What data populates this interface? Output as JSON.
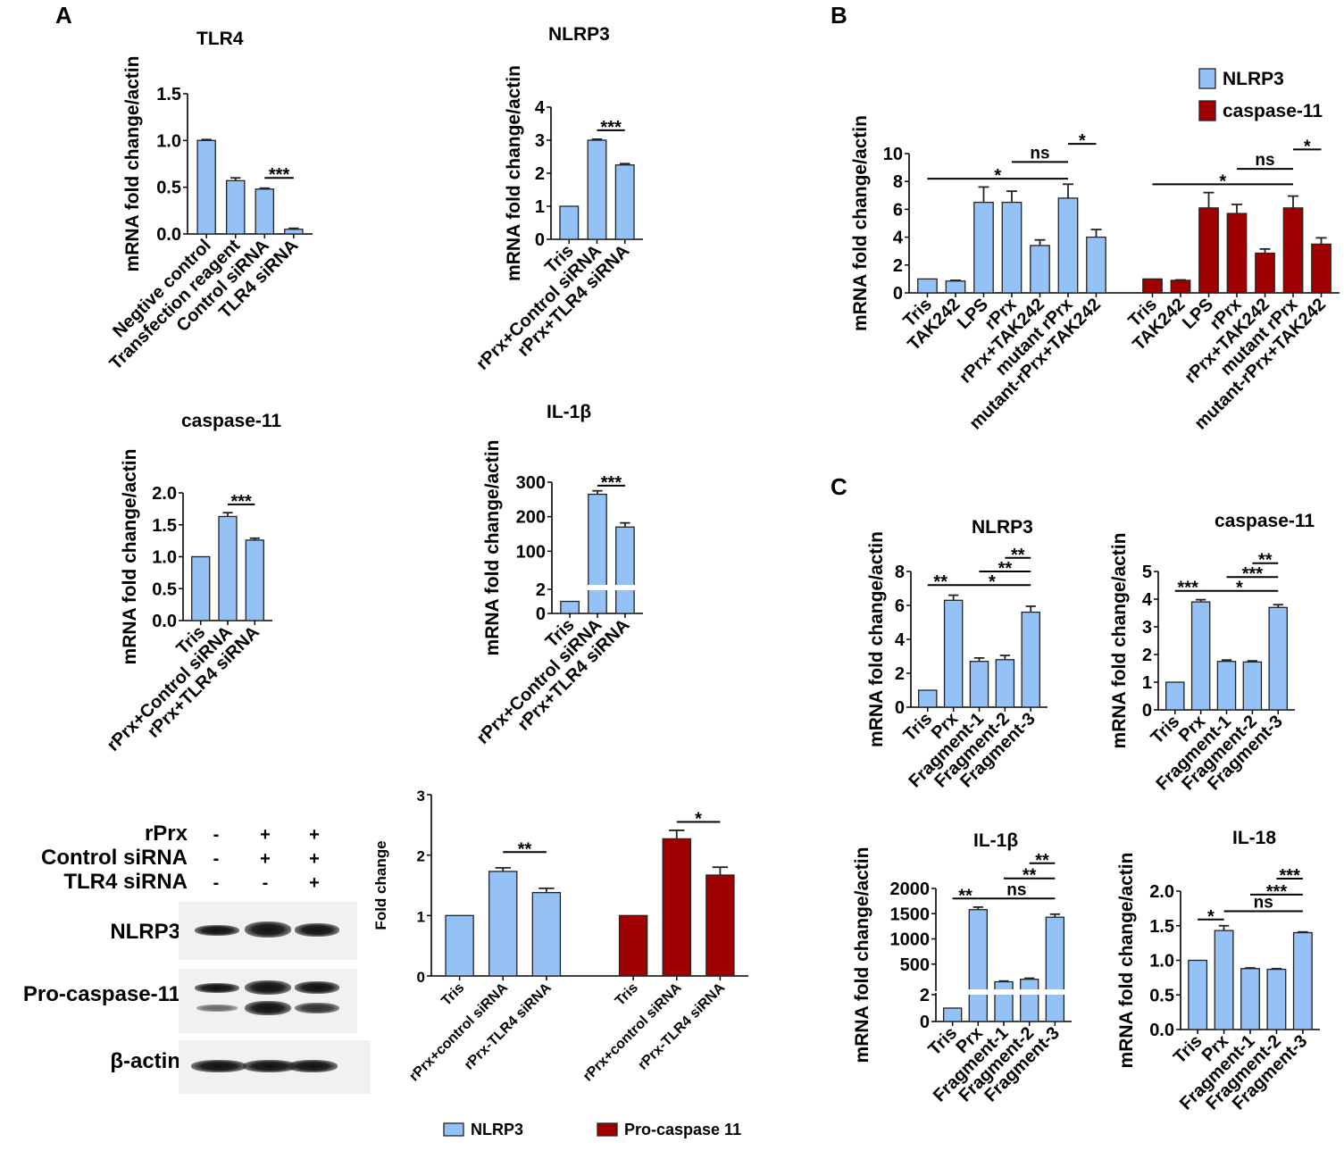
{
  "panels": {
    "A": "A",
    "B": "B",
    "C": "C"
  },
  "western_blot": {
    "conditions": [
      {
        "label": "rPrx",
        "signs": [
          "-",
          "+",
          "+"
        ]
      },
      {
        "label": "Control siRNA",
        "signs": [
          "-",
          "+",
          "+"
        ]
      },
      {
        "label": "TLR4 siRNA",
        "signs": [
          "-",
          "-",
          "+"
        ]
      }
    ],
    "bands": [
      "NLRP3",
      "Pro-caspase-11",
      "β-actin"
    ]
  },
  "colors": {
    "blue": "#94c2f7",
    "red": "#a00000"
  },
  "chart_data": [
    {
      "id": "a_tlr4",
      "type": "bar",
      "title": "TLR4",
      "ylabel": "mRNA fold change/actin",
      "xlabel": "",
      "categories": [
        "Negtive control",
        "Transfection reagent",
        "Control siRNA",
        "TLR4 siRNA"
      ],
      "series": [
        {
          "name": "TLR4",
          "color": "#94c2f7",
          "values": [
            1.0,
            0.57,
            0.48,
            0.05
          ],
          "errors": [
            0.01,
            0.03,
            0.01,
            0.01
          ]
        }
      ],
      "ylim": [
        0,
        1.5
      ],
      "ticks": [
        "0.0",
        "0.5",
        "1.0",
        "1.5"
      ],
      "tick_values": [
        0,
        0.5,
        1.0,
        1.5
      ],
      "significance": [
        {
          "from": 2,
          "to": 3,
          "level": 0.6,
          "label": "***"
        }
      ]
    },
    {
      "id": "a_nlrp3",
      "type": "bar",
      "title": "NLRP3",
      "ylabel": "mRNA fold change/actin",
      "xlabel": "",
      "categories": [
        "Tris",
        "rPrx+Control siRNA",
        "rPrx+TLR4 siRNA"
      ],
      "series": [
        {
          "name": "NLRP3",
          "color": "#94c2f7",
          "values": [
            1.0,
            3.0,
            2.25
          ],
          "errors": [
            0,
            0.03,
            0.04
          ]
        }
      ],
      "ylim": [
        0,
        4
      ],
      "ticks": [
        "0",
        "1",
        "2",
        "3",
        "4"
      ],
      "tick_values": [
        0,
        1,
        2,
        3,
        4
      ],
      "significance": [
        {
          "from": 1,
          "to": 2,
          "level": 3.3,
          "label": "***"
        }
      ]
    },
    {
      "id": "a_casp11",
      "type": "bar",
      "title": "caspase-11",
      "ylabel": "mRNA fold change/actin",
      "xlabel": "",
      "categories": [
        "Tris",
        "rPrx+Control siRNA",
        "rPrx+TLR4 siRNA"
      ],
      "series": [
        {
          "name": "caspase-11",
          "color": "#94c2f7",
          "values": [
            1.0,
            1.63,
            1.26
          ],
          "errors": [
            0,
            0.06,
            0.03
          ]
        }
      ],
      "ylim": [
        0,
        2.0
      ],
      "ticks": [
        "0.0",
        "0.5",
        "1.0",
        "1.5",
        "2.0"
      ],
      "tick_values": [
        0,
        0.5,
        1.0,
        1.5,
        2.0
      ],
      "significance": [
        {
          "from": 1,
          "to": 2,
          "level": 1.82,
          "label": "***"
        }
      ]
    },
    {
      "id": "a_il1b",
      "type": "bar",
      "title": "IL-1β",
      "ylabel": "mRNA fold change/actin",
      "xlabel": "",
      "categories": [
        "Tris",
        "rPrx+Control siRNA",
        "rPrx+TLR4 siRNA"
      ],
      "series": [
        {
          "name": "IL-1β",
          "color": "#94c2f7",
          "values": [
            1.0,
            265,
            170
          ],
          "errors": [
            0,
            10,
            12
          ]
        }
      ],
      "broken_axis": {
        "lower": [
          0,
          2
        ],
        "upper": [
          0,
          300
        ]
      },
      "ticks": [
        "0",
        "2",
        "100",
        "200",
        "300"
      ],
      "tick_values": [
        0,
        2,
        100,
        200,
        300
      ],
      "significance": [
        {
          "from": 1,
          "to": 2,
          "level": 290,
          "label": "***"
        }
      ]
    },
    {
      "id": "a_wb_quant",
      "type": "bar",
      "title": "",
      "ylabel": "Fold change",
      "xlabel": "",
      "categories": [
        "Tris",
        "rPrx+control siRNA",
        "rPrx-TLR4 siRNA"
      ],
      "series": [
        {
          "name": "NLRP3",
          "color": "#94c2f7",
          "values": [
            1.0,
            1.73,
            1.38
          ],
          "errors": [
            0,
            0.06,
            0.07
          ]
        },
        {
          "name": "Pro-caspase 11",
          "color": "#a00000",
          "values": [
            1.0,
            2.27,
            1.67
          ],
          "errors": [
            0,
            0.14,
            0.13
          ]
        }
      ],
      "ylim": [
        0,
        3
      ],
      "ticks": [
        "0",
        "1",
        "2",
        "3"
      ],
      "tick_values": [
        0,
        1,
        2,
        3
      ],
      "legend": "bottom",
      "significance": [
        {
          "from": 1,
          "to": 2,
          "level": 2.05,
          "label": "**"
        },
        {
          "from": 4,
          "to": 5,
          "level": 2.55,
          "label": "*"
        }
      ]
    },
    {
      "id": "b",
      "type": "bar",
      "title": "",
      "ylabel": "mRNA fold change/actin",
      "xlabel": "",
      "categories": [
        "Tris",
        "TAK242",
        "LPS",
        "rPrx",
        "rPrx+TAK242",
        "mutant rPrx",
        "mutant-rPrx+TAK242"
      ],
      "series": [
        {
          "name": "NLRP3",
          "color": "#94c2f7",
          "values": [
            1.0,
            0.85,
            6.5,
            6.5,
            3.4,
            6.8,
            4.0
          ],
          "errors": [
            0,
            0.05,
            1.1,
            0.8,
            0.4,
            1.0,
            0.55
          ]
        },
        {
          "name": "caspase-11",
          "color": "#a00000",
          "values": [
            1.0,
            0.9,
            6.1,
            5.7,
            2.85,
            6.1,
            3.5
          ],
          "errors": [
            0,
            0.03,
            1.1,
            0.65,
            0.3,
            0.85,
            0.45
          ]
        }
      ],
      "ylim": [
        0,
        10
      ],
      "ticks": [
        "0",
        "2",
        "4",
        "6",
        "8",
        "10"
      ],
      "tick_values": [
        0,
        2,
        4,
        6,
        8,
        10
      ],
      "legend": "top-right",
      "significance": [
        {
          "from": 0,
          "to": 5,
          "level": 8.2,
          "label": "*"
        },
        {
          "from": 3,
          "to": 5,
          "level": 9.4,
          "label": "ns"
        },
        {
          "from": 5,
          "to": 6,
          "level": 10.7,
          "label": "*"
        },
        {
          "from": 7,
          "to": 12,
          "level": 7.8,
          "label": "*"
        },
        {
          "from": 10,
          "to": 12,
          "level": 8.9,
          "label": "ns"
        },
        {
          "from": 12,
          "to": 13,
          "level": 10.3,
          "label": "*"
        }
      ]
    },
    {
      "id": "c_nlrp3",
      "type": "bar",
      "title": "NLRP3",
      "ylabel": "mRNA fold change/actin",
      "xlabel": "",
      "categories": [
        "Tris",
        "Prx",
        "Fragment-1",
        "Fragment-2",
        "Fragment-3"
      ],
      "series": [
        {
          "name": "NLRP3",
          "color": "#94c2f7",
          "values": [
            1.0,
            6.3,
            2.7,
            2.8,
            5.6
          ],
          "errors": [
            0,
            0.3,
            0.2,
            0.25,
            0.35
          ]
        }
      ],
      "ylim": [
        0,
        8
      ],
      "ticks": [
        "0",
        "2",
        "4",
        "6",
        "8"
      ],
      "tick_values": [
        0,
        2,
        4,
        6,
        8
      ],
      "significance": [
        {
          "from": 0,
          "to": 1,
          "level": 7.2,
          "label": "**"
        },
        {
          "from": 1,
          "to": 4,
          "level": 7.2,
          "label": "*"
        },
        {
          "from": 2,
          "to": 4,
          "level": 8.0,
          "label": "**"
        },
        {
          "from": 3,
          "to": 4,
          "level": 8.8,
          "label": "**"
        }
      ]
    },
    {
      "id": "c_casp11",
      "type": "bar",
      "title": "caspase-11",
      "ylabel": "mRNA fold change/actin",
      "xlabel": "",
      "categories": [
        "Tris",
        "Prx",
        "Fragment-1",
        "Fragment-2",
        "Fragment-3"
      ],
      "series": [
        {
          "name": "caspase-11",
          "color": "#94c2f7",
          "values": [
            1.0,
            3.9,
            1.75,
            1.73,
            3.7
          ],
          "errors": [
            0,
            0.08,
            0.05,
            0.04,
            0.1
          ]
        }
      ],
      "ylim": [
        0,
        5
      ],
      "ticks": [
        "0",
        "1",
        "2",
        "3",
        "4",
        "5"
      ],
      "tick_values": [
        0,
        1,
        2,
        3,
        4,
        5
      ],
      "significance": [
        {
          "from": 0,
          "to": 1,
          "level": 4.3,
          "label": "***"
        },
        {
          "from": 1,
          "to": 4,
          "level": 4.3,
          "label": "*"
        },
        {
          "from": 2,
          "to": 4,
          "level": 4.8,
          "label": "***"
        },
        {
          "from": 3,
          "to": 4,
          "level": 5.3,
          "label": "**"
        }
      ]
    },
    {
      "id": "c_il1b",
      "type": "bar",
      "title": "IL-1β",
      "ylabel": "mRNA fold change/actin",
      "xlabel": "",
      "categories": [
        "Tris",
        "Prx",
        "Fragment-1",
        "Fragment-2",
        "Fragment-3"
      ],
      "series": [
        {
          "name": "IL-1β",
          "color": "#94c2f7",
          "values": [
            1.0,
            1580,
            150,
            200,
            1430
          ],
          "errors": [
            0,
            50,
            15,
            20,
            60
          ]
        }
      ],
      "broken_axis": {
        "lower": [
          0,
          2
        ],
        "upper": [
          0,
          2000
        ]
      },
      "ticks": [
        "0",
        "2",
        "500",
        "1000",
        "1500",
        "2000"
      ],
      "tick_values": [
        0,
        2,
        500,
        1000,
        1500,
        2000
      ],
      "significance": [
        {
          "from": 0,
          "to": 1,
          "level": 1800,
          "label": "**"
        },
        {
          "from": 1,
          "to": 4,
          "level": 1800,
          "label": "ns"
        },
        {
          "from": 2,
          "to": 4,
          "level": 2200,
          "label": "**"
        },
        {
          "from": 3,
          "to": 4,
          "level": 2500,
          "label": "**"
        }
      ]
    },
    {
      "id": "c_il18",
      "type": "bar",
      "title": "IL-18",
      "ylabel": "mRNA fold change/actin",
      "xlabel": "",
      "categories": [
        "Tris",
        "Prx",
        "Fragment-1",
        "Fragment-2",
        "Fragment-3"
      ],
      "series": [
        {
          "name": "IL-18",
          "color": "#94c2f7",
          "values": [
            1.0,
            1.43,
            0.88,
            0.87,
            1.4
          ],
          "errors": [
            0,
            0.07,
            0.01,
            0.01,
            0.01
          ]
        }
      ],
      "ylim": [
        0,
        2.0
      ],
      "ticks": [
        "0.0",
        "0.5",
        "1.0",
        "1.5",
        "2.0"
      ],
      "tick_values": [
        0,
        0.5,
        1.0,
        1.5,
        2.0
      ],
      "significance": [
        {
          "from": 0,
          "to": 1,
          "level": 1.59,
          "label": "*"
        },
        {
          "from": 1,
          "to": 4,
          "level": 1.71,
          "label": "ns"
        },
        {
          "from": 2,
          "to": 4,
          "level": 1.95,
          "label": "***"
        },
        {
          "from": 3,
          "to": 4,
          "level": 2.18,
          "label": "***"
        }
      ]
    }
  ]
}
